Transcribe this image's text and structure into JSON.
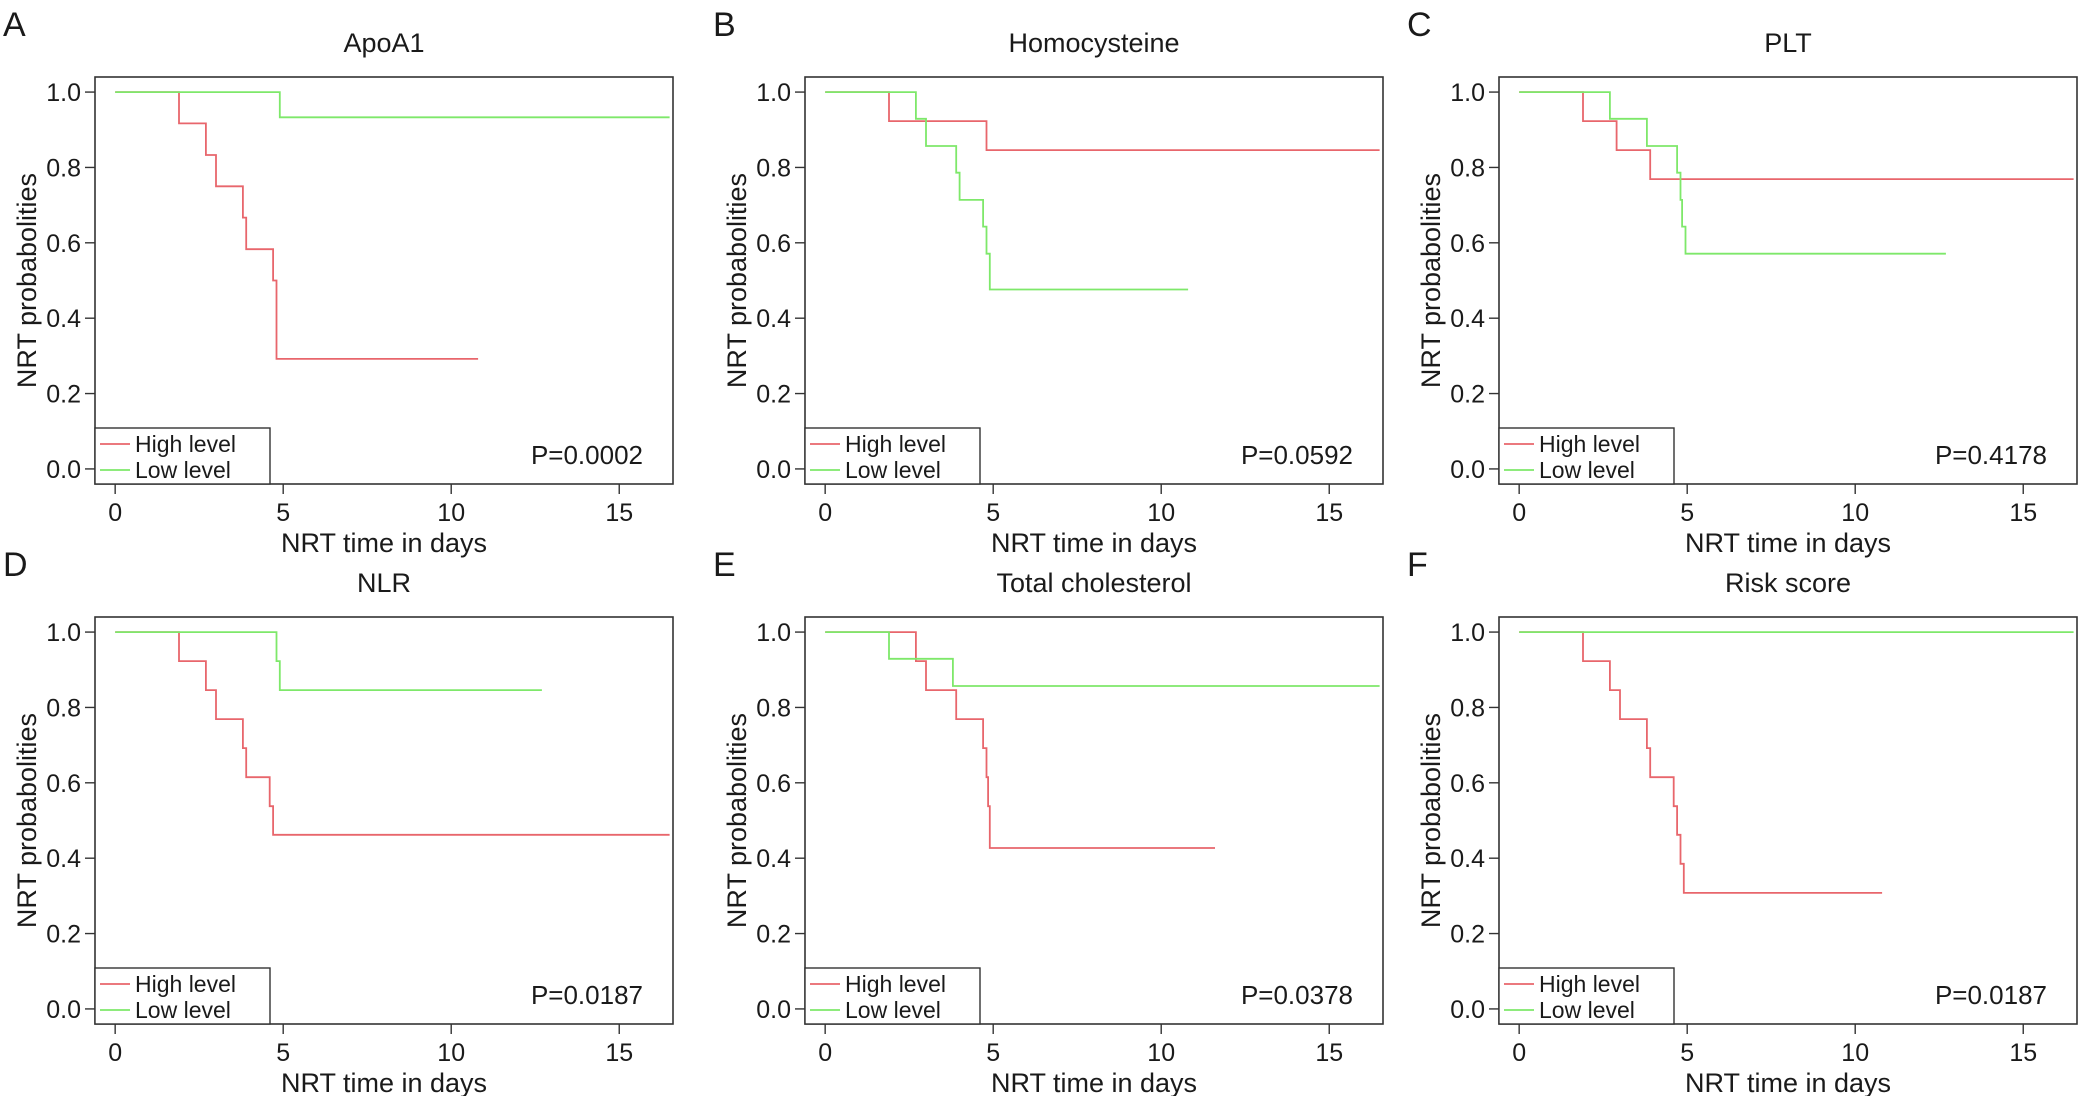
{
  "figure": {
    "colors": {
      "high": "#e8666c",
      "low": "#7ee86a",
      "axis": "#333333"
    },
    "legend": {
      "high": "High level",
      "low": "Low level"
    },
    "xlabel": "NRT time in days",
    "ylabel": "NRT probabolities"
  },
  "chart_data": [
    {
      "type": "line",
      "panel": "A",
      "title": "ApoA1",
      "xlabel": "NRT time in days",
      "ylabel": "NRT probabolities",
      "xticks": [
        0,
        5,
        10,
        15
      ],
      "yticks": [
        "0.0",
        "0.2",
        "0.4",
        "0.6",
        "0.8",
        "1.0"
      ],
      "xlim": [
        -0.6,
        16.6
      ],
      "ylim": [
        -0.04,
        1.04
      ],
      "p_value": "P=0.0002",
      "series": [
        {
          "name": "High level",
          "step": [
            [
              0,
              1.0
            ],
            [
              1.9,
              0.917
            ],
            [
              2.7,
              0.833
            ],
            [
              3.0,
              0.75
            ],
            [
              3.8,
              0.667
            ],
            [
              3.9,
              0.583
            ],
            [
              4.7,
              0.5
            ],
            [
              4.8,
              0.292
            ],
            [
              10.8,
              0.292
            ]
          ]
        },
        {
          "name": "Low level",
          "step": [
            [
              0,
              1.0
            ],
            [
              4.9,
              0.933
            ],
            [
              16.5,
              0.933
            ]
          ]
        }
      ]
    },
    {
      "type": "line",
      "panel": "B",
      "title": "Homocysteine",
      "xlabel": "NRT time in days",
      "ylabel": "NRT probabolities",
      "xticks": [
        0,
        5,
        10,
        15
      ],
      "yticks": [
        "0.0",
        "0.2",
        "0.4",
        "0.6",
        "0.8",
        "1.0"
      ],
      "xlim": [
        -0.6,
        16.6
      ],
      "ylim": [
        -0.04,
        1.04
      ],
      "p_value": "P=0.0592",
      "series": [
        {
          "name": "High level",
          "step": [
            [
              0,
              1.0
            ],
            [
              1.9,
              0.923
            ],
            [
              4.8,
              0.846
            ],
            [
              16.5,
              0.846
            ]
          ]
        },
        {
          "name": "Low level",
          "step": [
            [
              0,
              1.0
            ],
            [
              2.7,
              0.929
            ],
            [
              3.0,
              0.857
            ],
            [
              3.9,
              0.786
            ],
            [
              4.0,
              0.714
            ],
            [
              4.7,
              0.643
            ],
            [
              4.8,
              0.571
            ],
            [
              4.9,
              0.476
            ],
            [
              10.8,
              0.476
            ]
          ]
        }
      ]
    },
    {
      "type": "line",
      "panel": "C",
      "title": "PLT",
      "xlabel": "NRT time in days",
      "ylabel": "NRT probabolities",
      "xticks": [
        0,
        5,
        10,
        15
      ],
      "yticks": [
        "0.0",
        "0.2",
        "0.4",
        "0.6",
        "0.8",
        "1.0"
      ],
      "xlim": [
        -0.6,
        16.6
      ],
      "ylim": [
        -0.04,
        1.04
      ],
      "p_value": "P=0.4178",
      "series": [
        {
          "name": "High level",
          "step": [
            [
              0,
              1.0
            ],
            [
              1.9,
              0.923
            ],
            [
              2.9,
              0.846
            ],
            [
              3.9,
              0.769
            ],
            [
              16.5,
              0.769
            ]
          ]
        },
        {
          "name": "Low level",
          "step": [
            [
              0,
              1.0
            ],
            [
              2.7,
              0.929
            ],
            [
              3.8,
              0.857
            ],
            [
              4.7,
              0.786
            ],
            [
              4.8,
              0.714
            ],
            [
              4.85,
              0.643
            ],
            [
              4.95,
              0.571
            ],
            [
              12.7,
              0.571
            ]
          ]
        }
      ]
    },
    {
      "type": "line",
      "panel": "D",
      "title": "NLR",
      "xlabel": "NRT time in days",
      "ylabel": "NRT probabolities",
      "xticks": [
        0,
        5,
        10,
        15
      ],
      "yticks": [
        "0.0",
        "0.2",
        "0.4",
        "0.6",
        "0.8",
        "1.0"
      ],
      "xlim": [
        -0.6,
        16.6
      ],
      "ylim": [
        -0.04,
        1.04
      ],
      "p_value": "P=0.0187",
      "series": [
        {
          "name": "High level",
          "step": [
            [
              0,
              1.0
            ],
            [
              1.9,
              0.923
            ],
            [
              2.7,
              0.846
            ],
            [
              3.0,
              0.769
            ],
            [
              3.8,
              0.692
            ],
            [
              3.9,
              0.615
            ],
            [
              4.6,
              0.538
            ],
            [
              4.7,
              0.462
            ],
            [
              16.5,
              0.462
            ]
          ]
        },
        {
          "name": "Low level",
          "step": [
            [
              0,
              1.0
            ],
            [
              4.8,
              0.923
            ],
            [
              4.9,
              0.846
            ],
            [
              12.7,
              0.846
            ]
          ]
        }
      ]
    },
    {
      "type": "line",
      "panel": "E",
      "title": "Total cholesterol",
      "xlabel": "NRT time in days",
      "ylabel": "NRT probabolities",
      "xticks": [
        0,
        5,
        10,
        15
      ],
      "yticks": [
        "0.0",
        "0.2",
        "0.4",
        "0.6",
        "0.8",
        "1.0"
      ],
      "xlim": [
        -0.6,
        16.6
      ],
      "ylim": [
        -0.04,
        1.04
      ],
      "p_value": "P=0.0378",
      "series": [
        {
          "name": "High level",
          "step": [
            [
              0,
              1.0
            ],
            [
              2.7,
              0.923
            ],
            [
              3.0,
              0.846
            ],
            [
              3.9,
              0.769
            ],
            [
              4.7,
              0.692
            ],
            [
              4.8,
              0.615
            ],
            [
              4.85,
              0.538
            ],
            [
              4.9,
              0.427
            ],
            [
              11.6,
              0.427
            ]
          ]
        },
        {
          "name": "Low level",
          "step": [
            [
              0,
              1.0
            ],
            [
              1.9,
              0.929
            ],
            [
              3.8,
              0.857
            ],
            [
              16.5,
              0.857
            ]
          ]
        }
      ]
    },
    {
      "type": "line",
      "panel": "F",
      "title": "Risk score",
      "xlabel": "NRT time in days",
      "ylabel": "NRT probabolities",
      "xticks": [
        0,
        5,
        10,
        15
      ],
      "yticks": [
        "0.0",
        "0.2",
        "0.4",
        "0.6",
        "0.8",
        "1.0"
      ],
      "xlim": [
        -0.6,
        16.6
      ],
      "ylim": [
        -0.04,
        1.04
      ],
      "p_value": "P=0.0187",
      "series": [
        {
          "name": "High level",
          "step": [
            [
              0,
              1.0
            ],
            [
              1.9,
              0.923
            ],
            [
              2.7,
              0.846
            ],
            [
              3.0,
              0.769
            ],
            [
              3.8,
              0.692
            ],
            [
              3.9,
              0.615
            ],
            [
              4.6,
              0.538
            ],
            [
              4.7,
              0.462
            ],
            [
              4.8,
              0.385
            ],
            [
              4.9,
              0.308
            ],
            [
              10.8,
              0.308
            ]
          ]
        },
        {
          "name": "Low level",
          "step": [
            [
              0,
              1.0
            ],
            [
              16.5,
              1.0
            ]
          ]
        }
      ]
    }
  ]
}
